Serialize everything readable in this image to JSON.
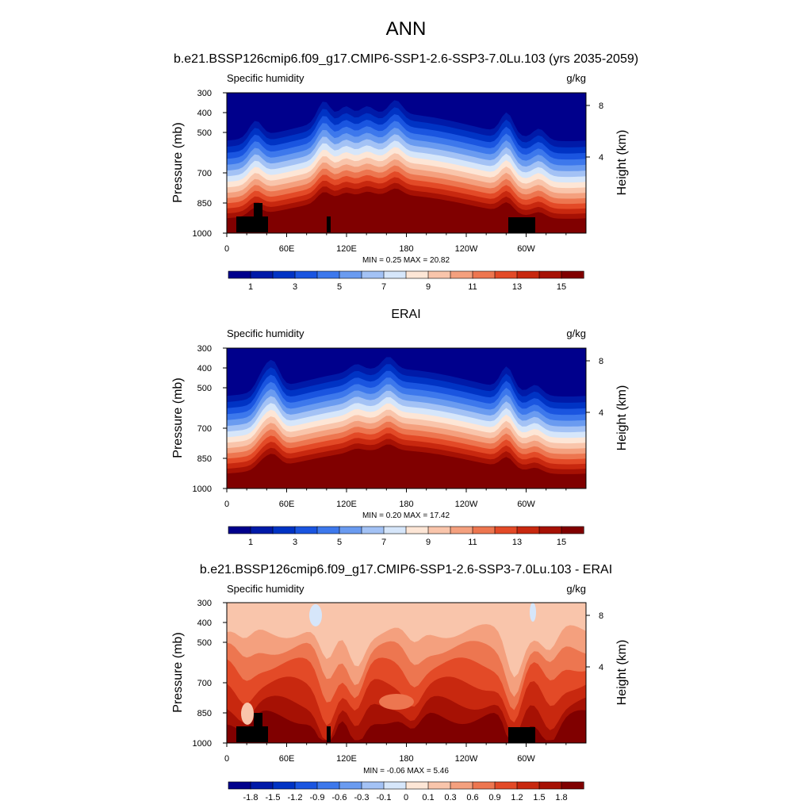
{
  "figure_title": "ANN",
  "panels": [
    {
      "title": "b.e21.BSSP126cmip6.f09_g17.CMIP6-SSP1-2.6-SSP3-7.0Lu.103 (yrs 2035-2059)",
      "left_label": "Specific humidity",
      "units": "g/kg",
      "stats": "MIN =  0.25  MAX =  20.82",
      "kind": "field",
      "min": 0.25,
      "max": 20.82,
      "topo": true
    },
    {
      "title": "ERAI",
      "left_label": "Specific humidity",
      "units": "g/kg",
      "stats": "MIN =  0.20  MAX =  17.42",
      "kind": "field",
      "min": 0.2,
      "max": 17.42,
      "topo": false
    },
    {
      "title": "b.e21.BSSP126cmip6.f09_g17.CMIP6-SSP1-2.6-SSP3-7.0Lu.103 - ERAI",
      "left_label": "Specific humidity",
      "units": "g/kg",
      "stats": "MIN = -0.06  MAX =  5.46",
      "kind": "diff",
      "min": -0.06,
      "max": 5.46,
      "topo": true
    }
  ],
  "y_axis_label": "Pressure (mb)",
  "y_ticks": [
    "300",
    "400",
    "500",
    "700",
    "850",
    "1000"
  ],
  "right_axis_label": "Height (km)",
  "right_ticks": [
    "8",
    "4"
  ],
  "x_ticks": [
    "0",
    "60E",
    "120E",
    "180",
    "120W",
    "60W"
  ],
  "field_colorbar_labels": [
    "1",
    "3",
    "5",
    "7",
    "9",
    "11",
    "13",
    "15"
  ],
  "diff_colorbar_labels": [
    "-1.8",
    "-1.5",
    "-1.2",
    "-0.9",
    "-0.6",
    "-0.3",
    "-0.1",
    "0",
    "0.1",
    "0.3",
    "0.6",
    "0.9",
    "1.2",
    "1.5",
    "1.8"
  ],
  "colors": {
    "field_scale": [
      "#00008c",
      "#001aa8",
      "#0033c4",
      "#1a55e0",
      "#3d78ec",
      "#6a9bf0",
      "#a3c2f5",
      "#d6e6fa",
      "#fde6d6",
      "#f9c5ab",
      "#f4a07e",
      "#ed7650",
      "#e34a27",
      "#c8280f",
      "#a61104",
      "#800000"
    ],
    "diff_scale": [
      "#00008c",
      "#001aa8",
      "#0033c4",
      "#1a55e0",
      "#3d78ec",
      "#6a9bf0",
      "#a3c2f5",
      "#d6e6fa",
      "#fde6d6",
      "#f9c5ab",
      "#f4a07e",
      "#ed7650",
      "#e34a27",
      "#c8280f",
      "#a61104",
      "#800000"
    ],
    "topography": "#000000"
  },
  "chart_data": [
    {
      "type": "heatmap",
      "title": "b.e21.BSSP126cmip6.f09_g17.CMIP6-SSP1-2.6-SSP3-7.0Lu.103 (yrs 2035-2059)",
      "variable": "Specific humidity",
      "units": "g/kg",
      "x": "longitude 0-360",
      "y": "pressure 300-1000 mb",
      "min": 0.25,
      "max": 20.82,
      "colorbar_levels": [
        1,
        3,
        5,
        7,
        9,
        11,
        13,
        15
      ]
    },
    {
      "type": "heatmap",
      "title": "ERAI",
      "variable": "Specific humidity",
      "units": "g/kg",
      "min": 0.2,
      "max": 17.42,
      "colorbar_levels": [
        1,
        3,
        5,
        7,
        9,
        11,
        13,
        15
      ]
    },
    {
      "type": "heatmap",
      "title": "b.e21.BSSP126cmip6.f09_g17.CMIP6-SSP1-2.6-SSP3-7.0Lu.103 - ERAI",
      "variable": "Specific humidity",
      "units": "g/kg",
      "min": -0.06,
      "max": 5.46,
      "colorbar_levels": [
        -1.8,
        -1.5,
        -1.2,
        -0.9,
        -0.6,
        -0.3,
        -0.1,
        0,
        0.1,
        0.3,
        0.6,
        0.9,
        1.2,
        1.5,
        1.8
      ]
    }
  ]
}
